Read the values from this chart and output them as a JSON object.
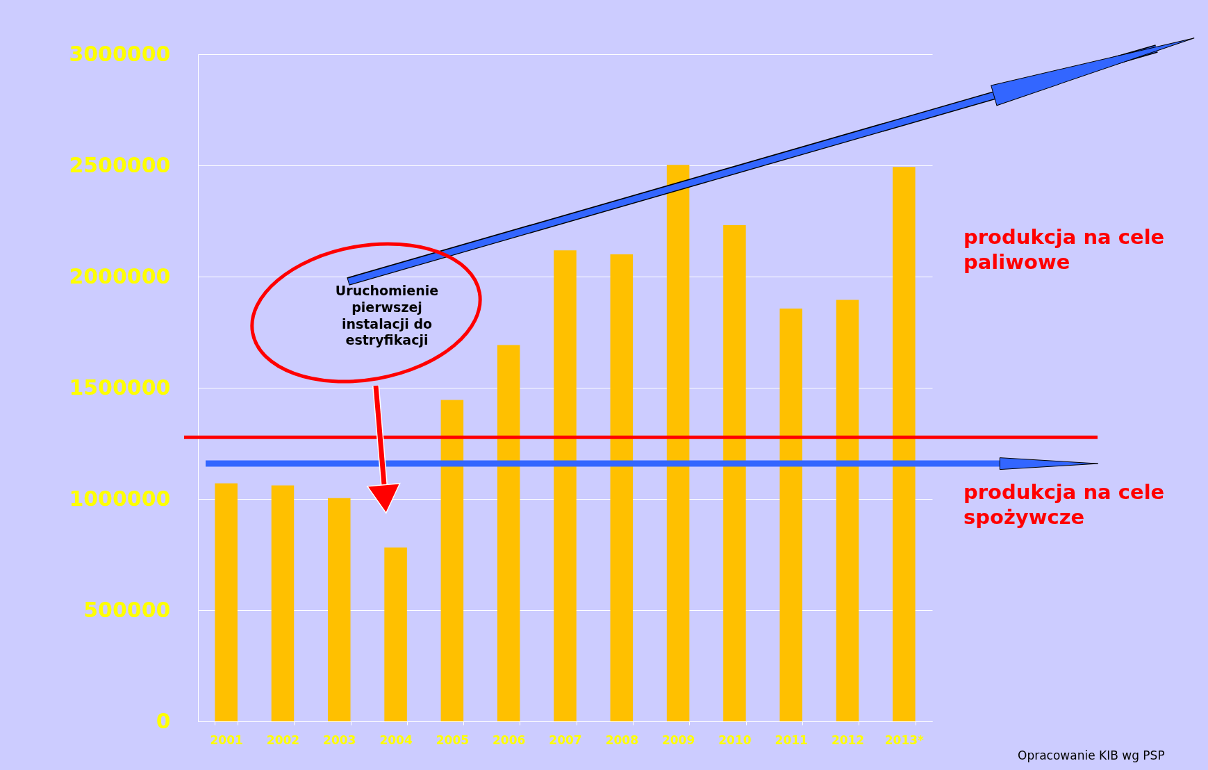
{
  "chart_data": {
    "type": "bar",
    "categories": [
      "2001",
      "2002",
      "2003",
      "2004",
      "2005",
      "2006",
      "2007",
      "2008",
      "2009",
      "2010",
      "2011",
      "2012",
      "2013*"
    ],
    "values": [
      1070000,
      1061000,
      1004000,
      782000,
      1445000,
      1692000,
      2118000,
      2100000,
      2502000,
      2231000,
      1856000,
      1895000,
      2493000
    ],
    "color": "#ffc000",
    "ylim": [
      0,
      3000000
    ],
    "yticks": [
      0,
      500000,
      1000000,
      1500000,
      2000000,
      2500000,
      3000000
    ],
    "grid": "y",
    "ref_lines": [
      {
        "axis": "y",
        "value": 1277000,
        "color": "#ff0000"
      },
      {
        "axis": "y",
        "value": 1159000,
        "color": "#3366ff"
      }
    ],
    "annotations": [
      "Uruchomienie\npierwszej\ninstalacji do\nestryfikacji",
      "produkcja na cele\npaliwowe",
      "produkcja na cele\nspożywcze",
      "Opracowanie KIB wg PSP"
    ]
  }
}
